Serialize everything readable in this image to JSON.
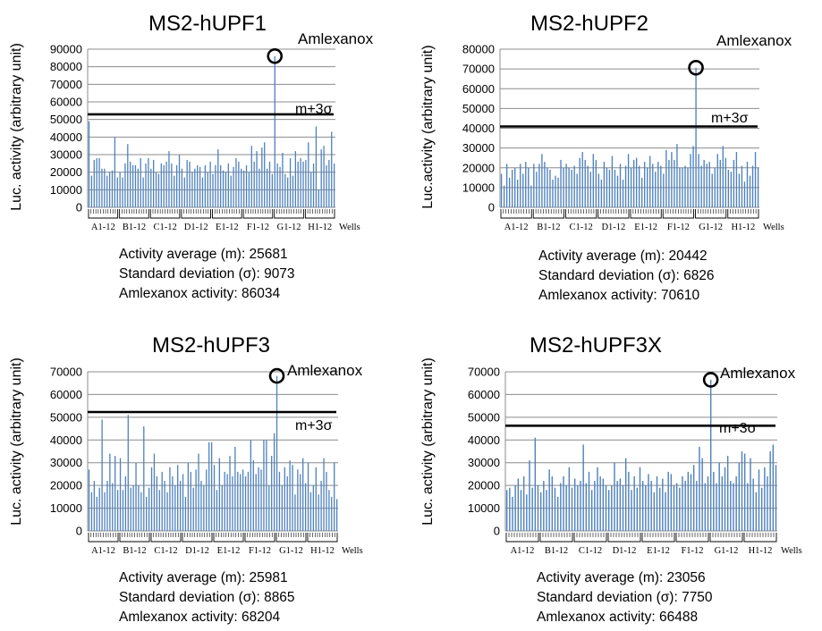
{
  "chart_data": [
    {
      "type": "bar",
      "title": "MS2-hUPF1",
      "xlabel": "Wells",
      "ylabel": "Luc. activity (arbitrary unit)",
      "ylim": [
        0,
        90000
      ],
      "yticks": [
        0,
        10000,
        20000,
        30000,
        40000,
        50000,
        60000,
        70000,
        80000,
        90000
      ],
      "grid": true,
      "groups": [
        "A1-12",
        "B1-12",
        "C1-12",
        "D1-12",
        "E1-12",
        "F1-12",
        "G1-12",
        "H1-12"
      ],
      "threshold": {
        "label": "m+3σ",
        "value": 52900
      },
      "highlight": {
        "label": "Amlexanox",
        "index": 72,
        "value": 86034
      },
      "values": [
        49000,
        18000,
        27000,
        28000,
        28000,
        22000,
        22000,
        18000,
        20000,
        21000,
        40000,
        17000,
        20000,
        17000,
        25000,
        36000,
        26000,
        24000,
        24000,
        22000,
        28000,
        17000,
        25000,
        28000,
        22000,
        27000,
        20000,
        19000,
        25000,
        24000,
        26000,
        32000,
        25000,
        18000,
        24000,
        30000,
        22000,
        17000,
        27000,
        26000,
        20000,
        22000,
        24000,
        23000,
        17000,
        24000,
        20000,
        26000,
        19000,
        24000,
        33000,
        24000,
        21000,
        20000,
        25000,
        18000,
        23000,
        28000,
        26000,
        22000,
        21000,
        24000,
        20000,
        35000,
        26000,
        32000,
        22000,
        34000,
        37000,
        22000,
        26000,
        19000,
        86034,
        25000,
        23000,
        31000,
        19000,
        17000,
        28000,
        18000,
        32000,
        26000,
        28000,
        26000,
        27000,
        37000,
        20000,
        25000,
        46000,
        10000,
        33000,
        35000,
        24000,
        27000,
        43000,
        25000
      ],
      "stats": {
        "average": "Activity average (m): 25681",
        "sd": "Standard deviation (σ): 9073",
        "amlexanox": "Amlexanox activity: 86034"
      }
    },
    {
      "type": "bar",
      "title": "MS2-hUPF2",
      "xlabel": "Wells",
      "ylabel": "Luc.activity (arbitrary unit)",
      "ylim": [
        0,
        80000
      ],
      "yticks": [
        0,
        10000,
        20000,
        30000,
        40000,
        50000,
        60000,
        70000,
        80000
      ],
      "grid": true,
      "groups": [
        "A1-12",
        "B1-12",
        "C1-12",
        "D1-12",
        "E1-12",
        "F1-12",
        "G1-12",
        "H1-12"
      ],
      "threshold": {
        "label": "m+3σ",
        "value": 40900
      },
      "highlight": {
        "label": "Amlexanox",
        "index": 72,
        "value": 70610
      },
      "values": [
        17000,
        11000,
        22000,
        15000,
        19000,
        20000,
        14000,
        22000,
        17000,
        23000,
        20000,
        11000,
        22000,
        18000,
        22000,
        27000,
        23000,
        20000,
        19000,
        14000,
        16000,
        15000,
        24000,
        20000,
        22000,
        20000,
        19000,
        21000,
        17000,
        25000,
        28000,
        24000,
        21000,
        18000,
        27000,
        24000,
        17000,
        14000,
        23000,
        20000,
        19000,
        26000,
        19000,
        16000,
        22000,
        14000,
        21000,
        27000,
        20000,
        24000,
        25000,
        21000,
        15000,
        23000,
        20000,
        26000,
        22000,
        18000,
        23000,
        21000,
        17000,
        29000,
        24000,
        28000,
        24000,
        32000,
        20000,
        20000,
        21000,
        20000,
        27000,
        31000,
        70610,
        27000,
        21000,
        24000,
        22000,
        23000,
        17000,
        20000,
        27000,
        24000,
        31000,
        25000,
        19000,
        18000,
        24000,
        28000,
        17000,
        21000,
        13000,
        23000,
        16000,
        21000,
        28000,
        20000
      ],
      "stats": {
        "average": "Activity average (m): 20442",
        "sd": "Standard deviation (σ): 6826",
        "amlexanox": "Amlexanox activity: 70610"
      }
    },
    {
      "type": "bar",
      "title": "MS2-hUPF3",
      "xlabel": "Wells",
      "ylabel": "Luc. activity (arbitrary unit)",
      "ylim": [
        0,
        70000
      ],
      "yticks": [
        0,
        10000,
        20000,
        30000,
        40000,
        50000,
        60000,
        70000
      ],
      "grid": true,
      "groups": [
        "A1-12",
        "B1-12",
        "C1-12",
        "D1-12",
        "E1-12",
        "F1-12",
        "G1-12",
        "H1-12"
      ],
      "threshold": {
        "label": "m+3σ",
        "value": 52300
      },
      "highlight": {
        "label": "Amlexanox",
        "index": 72,
        "value": 68204
      },
      "values": [
        27000,
        17000,
        22000,
        15000,
        19000,
        49000,
        17000,
        22000,
        34000,
        21000,
        33000,
        18000,
        32000,
        18000,
        24000,
        51000,
        19000,
        20000,
        30000,
        20000,
        17000,
        46000,
        15000,
        19000,
        28000,
        34000,
        24000,
        18000,
        26000,
        22000,
        17000,
        28000,
        24000,
        20000,
        29000,
        22000,
        25000,
        15000,
        30000,
        26000,
        19000,
        27000,
        34000,
        22000,
        20000,
        27000,
        39000,
        39000,
        29000,
        18000,
        32000,
        20000,
        26000,
        25000,
        33000,
        24000,
        37000,
        26000,
        25000,
        27000,
        24000,
        26000,
        40000,
        31000,
        25000,
        28000,
        27000,
        40000,
        40000,
        20000,
        33000,
        43000,
        68204,
        26000,
        20000,
        28000,
        24000,
        31000,
        29000,
        16000,
        27000,
        25000,
        32000,
        21000,
        30000,
        17000,
        20000,
        28000,
        16000,
        22000,
        32000,
        26000,
        18000,
        15000,
        30000,
        14000
      ],
      "stats": {
        "average": "Activity average (m): 25981",
        "sd": "Standard deviation (σ): 8865",
        "amlexanox": "Amlexanox activity: 68204"
      }
    },
    {
      "type": "bar",
      "title": "MS2-hUPF3X",
      "xlabel": "Wells",
      "ylabel": "Luc. activity (arbitrary unit)",
      "ylim": [
        0,
        70000
      ],
      "yticks": [
        0,
        10000,
        20000,
        30000,
        40000,
        50000,
        60000,
        70000
      ],
      "grid": true,
      "groups": [
        "A1-12",
        "B1-12",
        "C1-12",
        "D1-12",
        "E1-12",
        "F1-12",
        "G1-12",
        "H1-12"
      ],
      "threshold": {
        "label": "m+3σ",
        "value": 46300
      },
      "highlight": {
        "label": "Amlexanox",
        "index": 72,
        "value": 66488
      },
      "values": [
        18000,
        19000,
        15000,
        20000,
        23000,
        18000,
        24000,
        16000,
        31000,
        19000,
        41000,
        20000,
        17000,
        22000,
        18000,
        27000,
        24000,
        19000,
        15000,
        21000,
        24000,
        20000,
        28000,
        19000,
        23000,
        20000,
        22000,
        38000,
        21000,
        26000,
        18000,
        22000,
        28000,
        24000,
        23000,
        20000,
        18000,
        20000,
        30000,
        22000,
        23000,
        20000,
        32000,
        26000,
        18000,
        24000,
        19000,
        28000,
        22000,
        20000,
        25000,
        22000,
        17000,
        24000,
        19000,
        23000,
        17000,
        26000,
        25000,
        20000,
        21000,
        19000,
        24000,
        22000,
        26000,
        25000,
        29000,
        22000,
        37000,
        32000,
        21000,
        24000,
        66488,
        26000,
        21000,
        30000,
        24000,
        28000,
        33000,
        22000,
        21000,
        24000,
        30000,
        35000,
        34000,
        21000,
        32000,
        23000,
        17000,
        27000,
        19000,
        28000,
        24000,
        35000,
        38000,
        29000
      ],
      "stats": {
        "average": "Activity average (m): 23056",
        "sd": "Standard deviation (σ): 7750",
        "amlexanox": "Amlexanox activity: 66488"
      }
    }
  ]
}
